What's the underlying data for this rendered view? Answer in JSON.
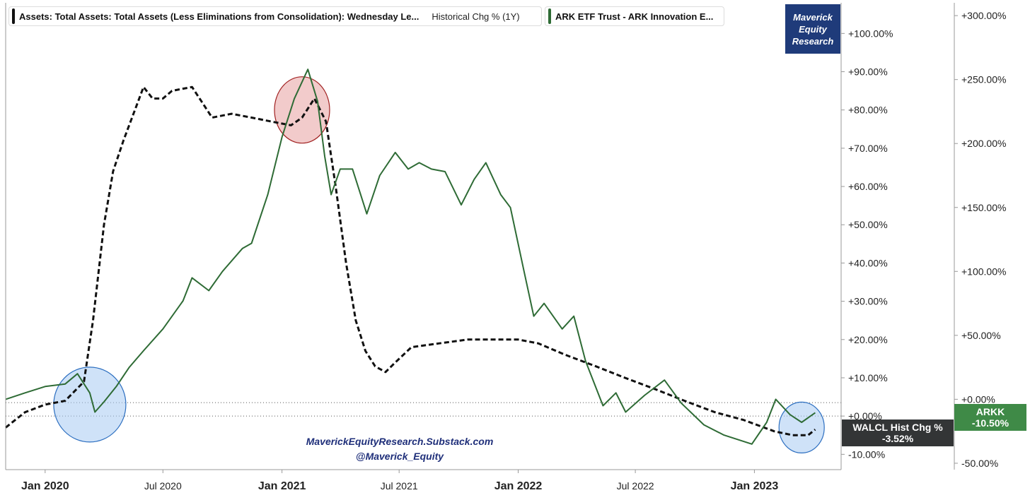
{
  "legend": {
    "series1_label": "Assets: Total Assets: Total Assets (Less Eliminations from Consolidation): Wednesday Le...",
    "series1_sub": "Historical Chg % (1Y)",
    "series2_label": "ARK ETF Trust - ARK Innovation E..."
  },
  "logo": {
    "line1": "Maverick",
    "line2": "Equity",
    "line3": "Research"
  },
  "watermark": {
    "line1": "MaverickEquityResearch.Substack.com",
    "line2": "@Maverick_Equity"
  },
  "tags": {
    "walcl_line1": "WALCL Hist Chg %",
    "walcl_line2": "-3.52%",
    "arkk_line1": "ARKK",
    "arkk_line2": "-10.50%"
  },
  "colors": {
    "walcl": "#111111",
    "arkk": "#2e6b35",
    "red_highlight": "#e8a0a0",
    "blue_highlight": "#a8cbf2",
    "walcl_tag": "#333536",
    "arkk_tag": "#3f8a47",
    "logo": "#1f3b7a"
  },
  "chart_data": {
    "type": "line",
    "x_ticks": [
      "Jan 2020",
      "Jul 2020",
      "Jan 2021",
      "Jul 2021",
      "Jan 2022",
      "Jul 2022",
      "Jan 2023"
    ],
    "x_range": [
      "2019-11-01",
      "2023-05-15"
    ],
    "left_axis": {
      "ticks": [
        "+100.00%",
        "+90.00%",
        "+80.00%",
        "+70.00%",
        "+60.00%",
        "+50.00%",
        "+40.00%",
        "+30.00%",
        "+20.00%",
        "+10.00%",
        "+0.00%",
        "-10.00%"
      ],
      "range": [
        -14,
        108
      ]
    },
    "right_axis": {
      "ticks": [
        "+300.00%",
        "+250.00%",
        "+200.00%",
        "+150.00%",
        "+100.00%",
        "+50.00%",
        "+0.00%",
        "-50.00%"
      ],
      "range": [
        -55,
        310
      ]
    },
    "series": [
      {
        "name": "Assets: Total Assets: Total Assets (Less Eliminations from Consolidation): Wednesday Le... Historical Chg % (1Y)",
        "axis": "left",
        "style": "dashed",
        "points": [
          [
            "2019-11-01",
            -3
          ],
          [
            "2019-12-01",
            1
          ],
          [
            "2020-01-01",
            3
          ],
          [
            "2020-02-01",
            4
          ],
          [
            "2020-03-01",
            9
          ],
          [
            "2020-03-15",
            25
          ],
          [
            "2020-04-01",
            50
          ],
          [
            "2020-04-15",
            64
          ],
          [
            "2020-05-01",
            72
          ],
          [
            "2020-06-01",
            86
          ],
          [
            "2020-06-15",
            83
          ],
          [
            "2020-07-01",
            83
          ],
          [
            "2020-07-15",
            85
          ],
          [
            "2020-08-15",
            86
          ],
          [
            "2020-09-15",
            78
          ],
          [
            "2020-10-15",
            79
          ],
          [
            "2020-11-15",
            78
          ],
          [
            "2020-12-15",
            77
          ],
          [
            "2021-01-15",
            76
          ],
          [
            "2021-02-01",
            78
          ],
          [
            "2021-02-20",
            83
          ],
          [
            "2021-03-10",
            77
          ],
          [
            "2021-03-25",
            60
          ],
          [
            "2021-04-10",
            40
          ],
          [
            "2021-04-25",
            25
          ],
          [
            "2021-05-10",
            17
          ],
          [
            "2021-05-25",
            13
          ],
          [
            "2021-06-10",
            11.5
          ],
          [
            "2021-06-25",
            14
          ],
          [
            "2021-07-20",
            18
          ],
          [
            "2021-09-01",
            19
          ],
          [
            "2021-10-15",
            20
          ],
          [
            "2021-12-01",
            20
          ],
          [
            "2022-01-01",
            20
          ],
          [
            "2022-02-01",
            19
          ],
          [
            "2022-03-15",
            16
          ],
          [
            "2022-05-01",
            13
          ],
          [
            "2022-06-15",
            10
          ],
          [
            "2022-08-01",
            7
          ],
          [
            "2022-09-15",
            4
          ],
          [
            "2022-11-01",
            1
          ],
          [
            "2022-12-15",
            -1
          ],
          [
            "2023-02-01",
            -4
          ],
          [
            "2023-03-01",
            -5
          ],
          [
            "2023-03-25",
            -5
          ],
          [
            "2023-04-05",
            -3.52
          ]
        ]
      },
      {
        "name": "ARK ETF Trust - ARK Innovation E...",
        "axis": "right",
        "style": "solid",
        "points": [
          [
            "2019-11-01",
            0
          ],
          [
            "2019-12-01",
            5
          ],
          [
            "2020-01-01",
            10
          ],
          [
            "2020-02-01",
            12
          ],
          [
            "2020-02-20",
            20
          ],
          [
            "2020-03-10",
            5
          ],
          [
            "2020-03-18",
            -10
          ],
          [
            "2020-04-01",
            -2
          ],
          [
            "2020-04-20",
            10
          ],
          [
            "2020-05-10",
            25
          ],
          [
            "2020-06-01",
            38
          ],
          [
            "2020-07-01",
            55
          ],
          [
            "2020-08-01",
            77
          ],
          [
            "2020-08-15",
            95
          ],
          [
            "2020-09-10",
            85
          ],
          [
            "2020-10-01",
            100
          ],
          [
            "2020-11-01",
            118
          ],
          [
            "2020-11-15",
            122
          ],
          [
            "2020-12-10",
            160
          ],
          [
            "2021-01-01",
            205
          ],
          [
            "2021-01-20",
            235
          ],
          [
            "2021-02-10",
            258
          ],
          [
            "2021-02-25",
            233
          ],
          [
            "2021-03-08",
            190
          ],
          [
            "2021-03-18",
            160
          ],
          [
            "2021-04-01",
            180
          ],
          [
            "2021-04-20",
            180
          ],
          [
            "2021-05-12",
            145
          ],
          [
            "2021-06-01",
            175
          ],
          [
            "2021-06-25",
            193
          ],
          [
            "2021-07-15",
            180
          ],
          [
            "2021-08-01",
            185
          ],
          [
            "2021-08-20",
            180
          ],
          [
            "2021-09-10",
            178
          ],
          [
            "2021-10-05",
            152
          ],
          [
            "2021-10-25",
            172
          ],
          [
            "2021-11-12",
            185
          ],
          [
            "2021-12-05",
            160
          ],
          [
            "2021-12-20",
            150
          ],
          [
            "2022-01-10",
            100
          ],
          [
            "2022-01-25",
            65
          ],
          [
            "2022-02-10",
            75
          ],
          [
            "2022-03-10",
            55
          ],
          [
            "2022-03-28",
            65
          ],
          [
            "2022-04-15",
            30
          ],
          [
            "2022-05-12",
            -5
          ],
          [
            "2022-06-01",
            5
          ],
          [
            "2022-06-16",
            -10
          ],
          [
            "2022-07-15",
            3
          ],
          [
            "2022-08-15",
            15
          ],
          [
            "2022-09-10",
            -3
          ],
          [
            "2022-10-15",
            -20
          ],
          [
            "2022-11-15",
            -28
          ],
          [
            "2022-12-28",
            -35
          ],
          [
            "2023-01-20",
            -18
          ],
          [
            "2023-02-03",
            0
          ],
          [
            "2023-02-25",
            -12
          ],
          [
            "2023-03-15",
            -18
          ],
          [
            "2023-04-05",
            -10.5
          ]
        ]
      }
    ],
    "annotations": [
      {
        "shape": "circle",
        "color": "red",
        "center": [
          "2021-02-01",
          80
        ],
        "axis": "left"
      },
      {
        "shape": "circle",
        "color": "blue",
        "center": [
          "2020-03-10",
          3
        ],
        "axis": "left"
      },
      {
        "shape": "circle",
        "color": "blue",
        "center": [
          "2023-03-15",
          -3
        ],
        "axis": "left"
      }
    ],
    "reference_lines_left": [
      0,
      3.52
    ],
    "legend_position": "top-left"
  }
}
